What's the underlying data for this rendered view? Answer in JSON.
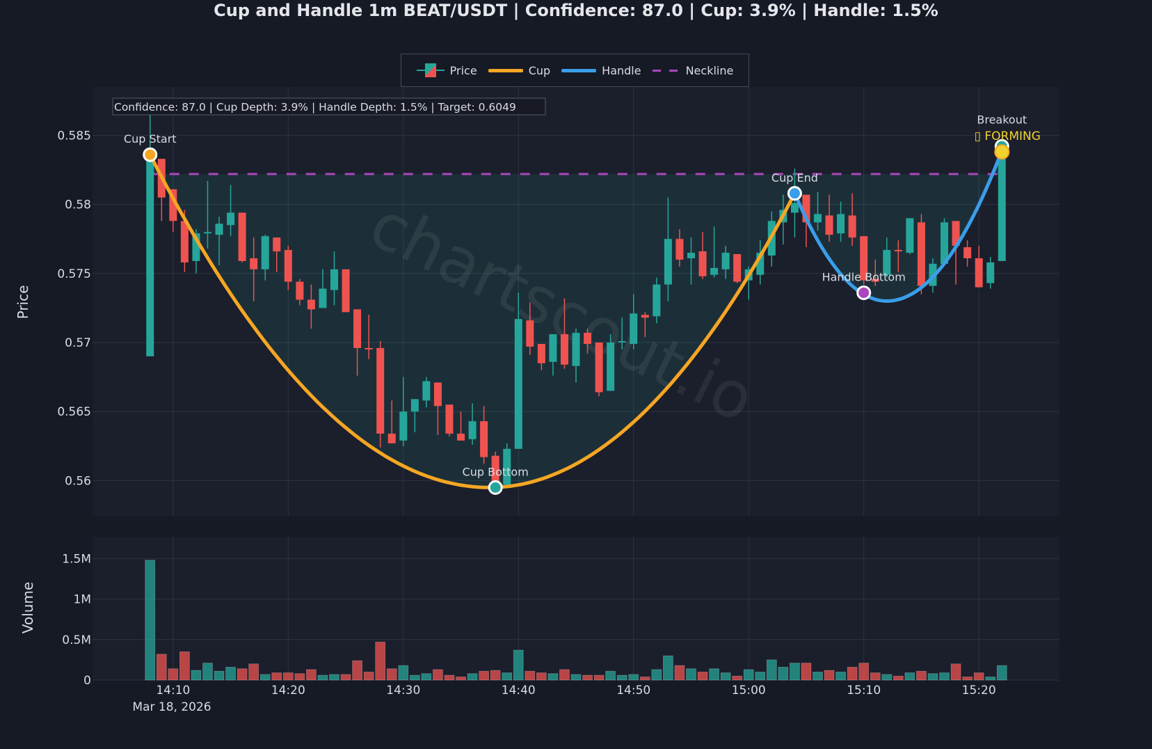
{
  "title": "Cup and Handle 1m BEAT/USDT | Confidence: 87.0 | Cup: 3.9% | Handle: 1.5%",
  "legend": {
    "price": "Price",
    "cup": "Cup",
    "handle": "Handle",
    "neckline": "Neckline"
  },
  "annotation_box": "Confidence: 87.0 | Cup Depth: 3.9% | Handle Depth: 1.5% | Target: 0.6049",
  "watermark": "chartscout.io",
  "colors": {
    "up": "#26a69a",
    "down": "#ef5350",
    "cup": "#f5a623",
    "handle": "#3a9ee8",
    "neckline": "#ab47bc",
    "forming": "#f2d22e",
    "background": "#161a25",
    "plot_bg": "#1b1e2b"
  },
  "chart_data": {
    "type": "candlestick",
    "title": "Cup and Handle 1m BEAT/USDT",
    "ylabel": "Price",
    "volume_ylabel": "Volume",
    "x_date_label": "Mar 18, 2026",
    "x_range": [
      "14:03",
      "15:27"
    ],
    "ylim": [
      0.5574,
      0.5885
    ],
    "volume_ylim_millions": [
      0,
      1.77
    ],
    "grid": true,
    "legend_position": "top-center",
    "x_ticks": [
      "14:10",
      "14:20",
      "14:30",
      "14:40",
      "14:50",
      "15:00",
      "15:10",
      "15:20"
    ],
    "price_ticks": [
      {
        "v": 0.56,
        "label": "0.56"
      },
      {
        "v": 0.565,
        "label": "0.565"
      },
      {
        "v": 0.57,
        "label": "0.57"
      },
      {
        "v": 0.575,
        "label": "0.575"
      },
      {
        "v": 0.58,
        "label": "0.58"
      },
      {
        "v": 0.585,
        "label": "0.585"
      }
    ],
    "volume_ticks": [
      {
        "v": 0,
        "label": "0"
      },
      {
        "v": 0.5,
        "label": "0.5M"
      },
      {
        "v": 1,
        "label": "1M"
      },
      {
        "v": 1.5,
        "label": "1.5M"
      }
    ],
    "candle_columns": [
      "time",
      "open",
      "high",
      "low",
      "close",
      "volume_millions"
    ],
    "candles": [
      [
        "14:08",
        0.569,
        0.5865,
        0.569,
        0.5836,
        1.48
      ],
      [
        "14:09",
        0.5833,
        0.5833,
        0.5788,
        0.5805,
        0.32
      ],
      [
        "14:10",
        0.5811,
        0.5811,
        0.578,
        0.5788,
        0.14
      ],
      [
        "14:11",
        0.5788,
        0.5796,
        0.5751,
        0.5758,
        0.35
      ],
      [
        "14:12",
        0.5759,
        0.5782,
        0.575,
        0.5779,
        0.12
      ],
      [
        "14:13",
        0.5779,
        0.5817,
        0.5768,
        0.578,
        0.21
      ],
      [
        "14:14",
        0.5778,
        0.5791,
        0.5756,
        0.5786,
        0.11
      ],
      [
        "14:15",
        0.5785,
        0.5814,
        0.5777,
        0.5794,
        0.16
      ],
      [
        "14:16",
        0.5794,
        0.5794,
        0.5758,
        0.5759,
        0.14
      ],
      [
        "14:17",
        0.5761,
        0.5776,
        0.573,
        0.5753,
        0.2
      ],
      [
        "14:18",
        0.5753,
        0.5778,
        0.5745,
        0.5777,
        0.07
      ],
      [
        "14:19",
        0.5776,
        0.5776,
        0.5751,
        0.5766,
        0.09
      ],
      [
        "14:20",
        0.5767,
        0.577,
        0.5738,
        0.5744,
        0.09
      ],
      [
        "14:21",
        0.5744,
        0.5746,
        0.5727,
        0.5731,
        0.08
      ],
      [
        "14:22",
        0.5731,
        0.5742,
        0.571,
        0.5724,
        0.13
      ],
      [
        "14:23",
        0.5725,
        0.5753,
        0.5725,
        0.5739,
        0.06
      ],
      [
        "14:24",
        0.5738,
        0.5766,
        0.5727,
        0.5753,
        0.07
      ],
      [
        "14:25",
        0.5753,
        0.5753,
        0.5722,
        0.5722,
        0.07
      ],
      [
        "14:26",
        0.5724,
        0.5724,
        0.5676,
        0.5696,
        0.24
      ],
      [
        "14:27",
        0.5696,
        0.572,
        0.5688,
        0.5695,
        0.1
      ],
      [
        "14:28",
        0.5696,
        0.5701,
        0.5624,
        0.5634,
        0.47
      ],
      [
        "14:29",
        0.5634,
        0.5658,
        0.5627,
        0.5627,
        0.14
      ],
      [
        "14:30",
        0.5629,
        0.5675,
        0.5625,
        0.565,
        0.18
      ],
      [
        "14:31",
        0.565,
        0.5659,
        0.5635,
        0.5659,
        0.06
      ],
      [
        "14:32",
        0.5658,
        0.5675,
        0.5653,
        0.5672,
        0.08
      ],
      [
        "14:33",
        0.5671,
        0.5671,
        0.5633,
        0.5654,
        0.13
      ],
      [
        "14:34",
        0.5655,
        0.5655,
        0.5632,
        0.5634,
        0.06
      ],
      [
        "14:35",
        0.5634,
        0.565,
        0.5629,
        0.5629,
        0.04
      ],
      [
        "14:36",
        0.563,
        0.5656,
        0.5626,
        0.5643,
        0.08
      ],
      [
        "14:37",
        0.5643,
        0.5654,
        0.5612,
        0.5617,
        0.11
      ],
      [
        "14:38",
        0.5618,
        0.5621,
        0.5594,
        0.5596,
        0.12
      ],
      [
        "14:39",
        0.5597,
        0.5627,
        0.5597,
        0.5623,
        0.09
      ],
      [
        "14:40",
        0.5623,
        0.5736,
        0.5623,
        0.5717,
        0.37
      ],
      [
        "14:41",
        0.5716,
        0.5729,
        0.5691,
        0.5697,
        0.11
      ],
      [
        "14:42",
        0.5699,
        0.5699,
        0.568,
        0.5685,
        0.09
      ],
      [
        "14:43",
        0.5686,
        0.5706,
        0.5676,
        0.5706,
        0.08
      ],
      [
        "14:44",
        0.5706,
        0.5732,
        0.5681,
        0.5684,
        0.13
      ],
      [
        "14:45",
        0.5683,
        0.571,
        0.5671,
        0.5707,
        0.07
      ],
      [
        "14:46",
        0.5707,
        0.571,
        0.5692,
        0.5699,
        0.06
      ],
      [
        "14:47",
        0.57,
        0.57,
        0.5661,
        0.5664,
        0.06
      ],
      [
        "14:48",
        0.5665,
        0.5706,
        0.5665,
        0.57,
        0.11
      ],
      [
        "14:49",
        0.57,
        0.5718,
        0.5695,
        0.5701,
        0.06
      ],
      [
        "14:50",
        0.5699,
        0.5735,
        0.5695,
        0.5721,
        0.07
      ],
      [
        "14:51",
        0.572,
        0.5722,
        0.5704,
        0.5718,
        0.04
      ],
      [
        "14:52",
        0.5719,
        0.5747,
        0.5714,
        0.5742,
        0.13
      ],
      [
        "14:53",
        0.5742,
        0.5805,
        0.573,
        0.5775,
        0.3
      ],
      [
        "14:54",
        0.5775,
        0.5782,
        0.5755,
        0.576,
        0.18
      ],
      [
        "14:55",
        0.5761,
        0.5776,
        0.5742,
        0.5765,
        0.14
      ],
      [
        "14:56",
        0.5766,
        0.578,
        0.5746,
        0.5748,
        0.1
      ],
      [
        "14:57",
        0.5749,
        0.5784,
        0.5747,
        0.5754,
        0.14
      ],
      [
        "14:58",
        0.5753,
        0.577,
        0.5746,
        0.5765,
        0.09
      ],
      [
        "14:59",
        0.5764,
        0.5764,
        0.5743,
        0.5744,
        0.05
      ],
      [
        "15:00",
        0.5745,
        0.5755,
        0.5731,
        0.5753,
        0.13
      ],
      [
        "15:01",
        0.5749,
        0.5774,
        0.5742,
        0.5765,
        0.1
      ],
      [
        "15:02",
        0.5763,
        0.5795,
        0.5755,
        0.5788,
        0.25
      ],
      [
        "15:03",
        0.5787,
        0.5807,
        0.5771,
        0.5796,
        0.16
      ],
      [
        "15:04",
        0.5794,
        0.5826,
        0.5776,
        0.5801,
        0.21
      ],
      [
        "15:05",
        0.5807,
        0.5807,
        0.5769,
        0.5787,
        0.21
      ],
      [
        "15:06",
        0.5787,
        0.5809,
        0.5781,
        0.5793,
        0.1
      ],
      [
        "15:07",
        0.5792,
        0.5807,
        0.5773,
        0.5778,
        0.12
      ],
      [
        "15:08",
        0.5779,
        0.5802,
        0.5773,
        0.5793,
        0.1
      ],
      [
        "15:09",
        0.5792,
        0.5808,
        0.577,
        0.5776,
        0.16
      ],
      [
        "15:10",
        0.5777,
        0.5777,
        0.5742,
        0.5745,
        0.21
      ],
      [
        "15:11",
        0.5746,
        0.576,
        0.5741,
        0.5744,
        0.09
      ],
      [
        "15:12",
        0.5749,
        0.5776,
        0.5747,
        0.5767,
        0.07
      ],
      [
        "15:13",
        0.5767,
        0.5774,
        0.5751,
        0.5766,
        0.05
      ],
      [
        "15:14",
        0.5765,
        0.579,
        0.5764,
        0.579,
        0.09
      ],
      [
        "15:15",
        0.5787,
        0.5793,
        0.5735,
        0.5741,
        0.11
      ],
      [
        "15:16",
        0.5741,
        0.5761,
        0.5736,
        0.5757,
        0.08
      ],
      [
        "15:17",
        0.5757,
        0.579,
        0.5757,
        0.5787,
        0.09
      ],
      [
        "15:18",
        0.5788,
        0.5788,
        0.5742,
        0.577,
        0.2
      ],
      [
        "15:19",
        0.5769,
        0.5774,
        0.5755,
        0.5761,
        0.04
      ],
      [
        "15:20",
        0.5761,
        0.577,
        0.574,
        0.574,
        0.09
      ],
      [
        "15:21",
        0.5743,
        0.5762,
        0.5739,
        0.5758,
        0.04
      ],
      [
        "15:22",
        0.5759,
        0.5842,
        0.5759,
        0.5842,
        0.18
      ]
    ],
    "neckline": {
      "price": 0.5822,
      "from": "14:08",
      "to": "15:22"
    },
    "cup_curve": {
      "start": {
        "time": "14:08",
        "price": 0.5836
      },
      "bottom": {
        "time": "14:37.5",
        "price": 0.5595
      },
      "end": {
        "time": "15:04",
        "price": 0.5808
      }
    },
    "handle_curve": {
      "start": {
        "time": "15:04",
        "price": 0.5808
      },
      "bottom": {
        "time": "15:12",
        "price": 0.573
      },
      "end": {
        "time": "15:22",
        "price": 0.5839
      }
    },
    "points": [
      {
        "label": "Cup Start",
        "time": "14:08",
        "price": 0.5836,
        "color": "#f5a623"
      },
      {
        "label": "Cup Bottom",
        "time": "14:38",
        "price": 0.5595,
        "color": "#26a69a"
      },
      {
        "label": "Cup End",
        "time": "15:04",
        "price": 0.5808,
        "color": "#3a9ee8"
      },
      {
        "label": "Handle Bottom",
        "time": "15:10",
        "price": 0.5736,
        "color": "#ab47bc"
      },
      {
        "label": "Breakout",
        "time": "15:22",
        "price": 0.5842,
        "color": "#26a69a"
      }
    ],
    "status_marker": {
      "label": "▯ FORMING",
      "time": "15:22",
      "price": 0.5838,
      "color": "#f2d22e"
    }
  }
}
